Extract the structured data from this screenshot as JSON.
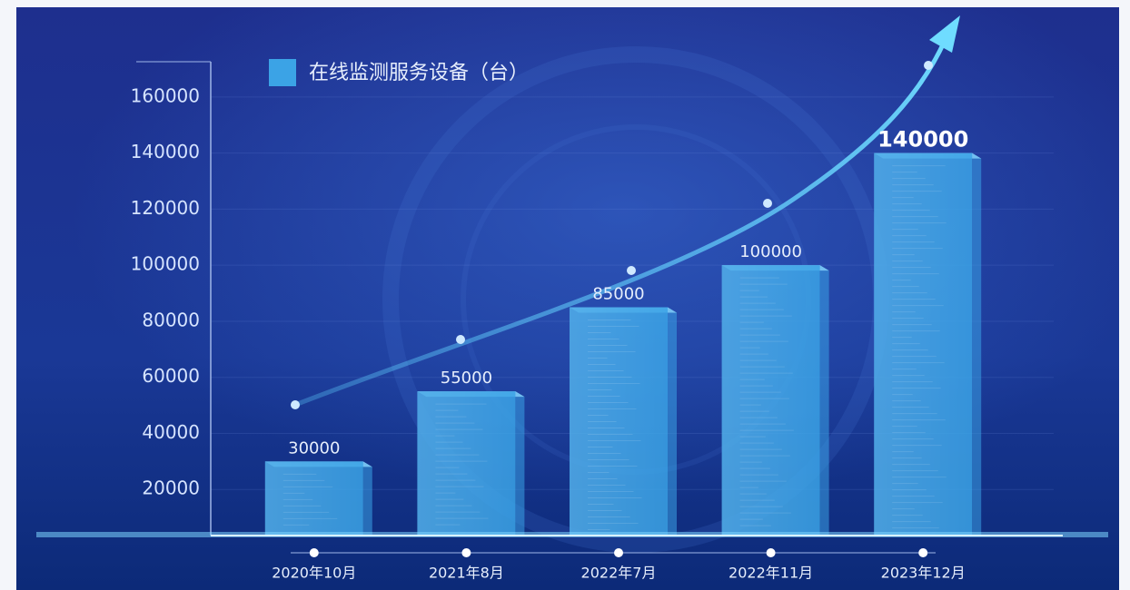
{
  "chart_data": {
    "type": "bar",
    "legend": "在线监测服务设备（台）",
    "categories": [
      "2020年10月",
      "2021年8月",
      "2022年7月",
      "2022年11月",
      "2023年12月"
    ],
    "values": [
      30000,
      55000,
      85000,
      100000,
      140000
    ],
    "color": "#3ba3e6",
    "ylim": [
      0,
      170000
    ],
    "yticks": [
      20000,
      40000,
      60000,
      80000,
      100000,
      120000,
      140000,
      160000
    ],
    "grid": true
  }
}
